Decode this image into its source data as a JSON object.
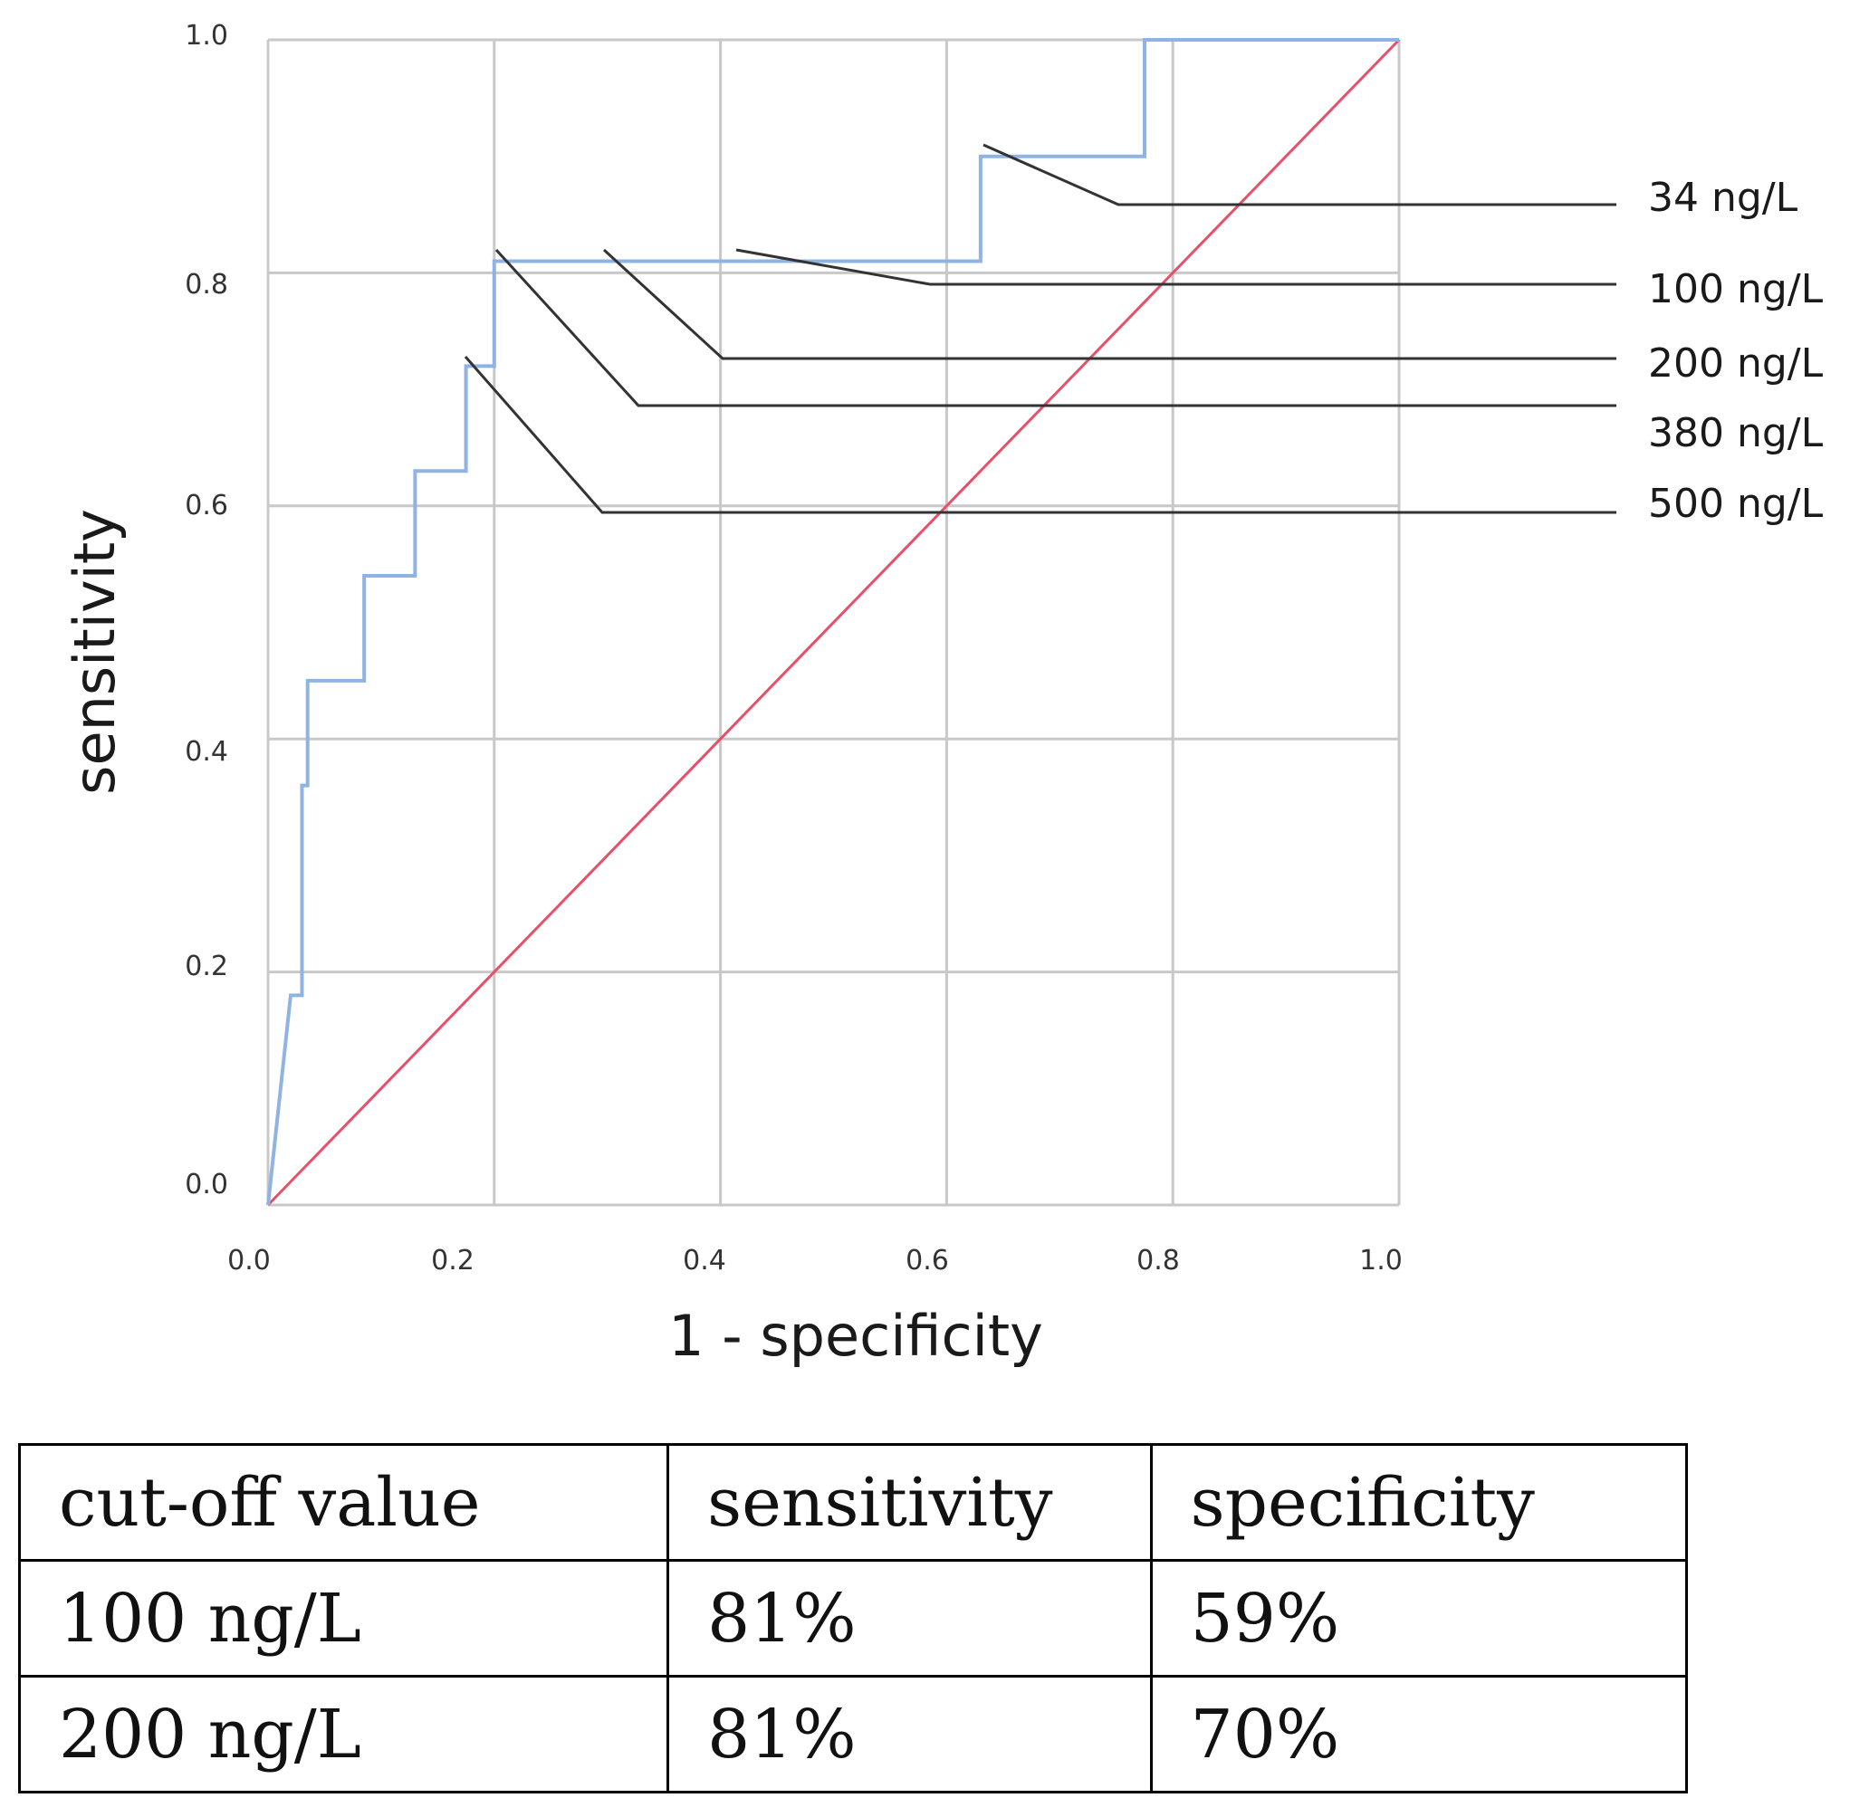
{
  "chart_data": {
    "type": "line",
    "xlabel": "1 - specificity",
    "ylabel": "sensitivity",
    "xlim": [
      0,
      1
    ],
    "ylim": [
      0,
      1
    ],
    "xticks": [
      "0.0",
      "0.2",
      "0.4",
      "0.6",
      "0.8",
      "1.0"
    ],
    "yticks": [
      "0.0",
      "0.2",
      "0.4",
      "0.6",
      "0.8",
      "1.0"
    ],
    "grid": true,
    "colors": {
      "roc": "#8fb4e3",
      "reference": "#e8506a",
      "grid": "#c8c8c8",
      "leader": "#333333"
    },
    "series": [
      {
        "values": [
          [
            0.0,
            0.0
          ],
          [
            0.02,
            0.18
          ],
          [
            0.03,
            0.18
          ],
          [
            0.03,
            0.36
          ],
          [
            0.035,
            0.36
          ],
          [
            0.035,
            0.45
          ],
          [
            0.085,
            0.45
          ],
          [
            0.085,
            0.54
          ],
          [
            0.13,
            0.54
          ],
          [
            0.13,
            0.63
          ],
          [
            0.175,
            0.63
          ],
          [
            0.175,
            0.72
          ],
          [
            0.2,
            0.72
          ],
          [
            0.2,
            0.81
          ],
          [
            0.63,
            0.81
          ],
          [
            0.63,
            0.9
          ],
          [
            0.775,
            0.9
          ],
          [
            0.775,
            1.0
          ],
          [
            1.0,
            1.0
          ]
        ]
      },
      {
        "values": [
          [
            0.0,
            0.0
          ],
          [
            1.0,
            1.0
          ]
        ]
      }
    ],
    "annotations": [
      {
        "text": "34 ng/L",
        "point": [
          0.63,
          0.9
        ]
      },
      {
        "text": "100 ng/L",
        "point": [
          0.41,
          0.81
        ]
      },
      {
        "text": "200 ng/L",
        "point": [
          0.3,
          0.81
        ]
      },
      {
        "text": "380 ng/L",
        "point": [
          0.2,
          0.81
        ]
      },
      {
        "text": "500 ng/L",
        "point": [
          0.175,
          0.72
        ]
      }
    ]
  },
  "table": {
    "header": [
      "cut-off value",
      "sensitivity",
      "specificity"
    ],
    "rows": [
      [
        "100 ng/L",
        "81%",
        "59%"
      ],
      [
        "200 ng/L",
        "81%",
        "70%"
      ]
    ]
  }
}
